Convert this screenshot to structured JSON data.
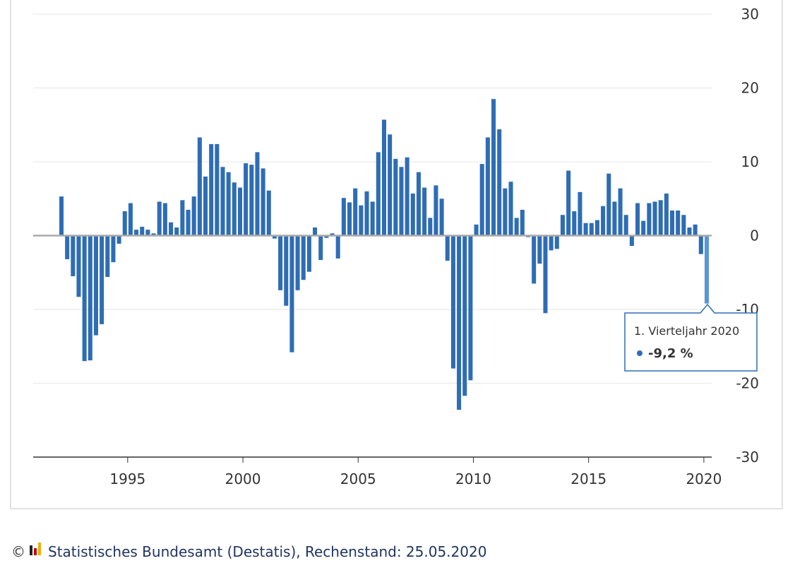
{
  "chart_data": {
    "type": "bar",
    "color": "#2e6db4",
    "highlight_color": "#5a95d4",
    "x": [
      1992,
      1992.25,
      1992.5,
      1992.75,
      1993,
      1993.25,
      1993.5,
      1993.75,
      1994,
      1994.25,
      1994.5,
      1994.75,
      1995,
      1995.25,
      1995.5,
      1995.75,
      1996,
      1996.25,
      1996.5,
      1996.75,
      1997,
      1997.25,
      1997.5,
      1997.75,
      1998,
      1998.25,
      1998.5,
      1998.75,
      1999,
      1999.25,
      1999.5,
      1999.75,
      2000,
      2000.25,
      2000.5,
      2000.75,
      2001,
      2001.25,
      2001.5,
      2001.75,
      2002,
      2002.25,
      2002.5,
      2002.75,
      2003,
      2003.25,
      2003.5,
      2003.75,
      2004,
      2004.25,
      2004.5,
      2004.75,
      2005,
      2005.25,
      2005.5,
      2005.75,
      2006,
      2006.25,
      2006.5,
      2006.75,
      2007,
      2007.25,
      2007.5,
      2007.75,
      2008,
      2008.25,
      2008.5,
      2008.75,
      2009,
      2009.25,
      2009.5,
      2009.75,
      2010,
      2010.25,
      2010.5,
      2010.75,
      2011,
      2011.25,
      2011.5,
      2011.75,
      2012,
      2012.25,
      2012.5,
      2012.75,
      2013,
      2013.25,
      2013.5,
      2013.75,
      2014,
      2014.25,
      2014.5,
      2014.75,
      2015,
      2015.25,
      2015.5,
      2015.75,
      2016,
      2016.25,
      2016.5,
      2016.75,
      2017,
      2017.25,
      2017.5,
      2017.75,
      2018,
      2018.25,
      2018.5,
      2018.75,
      2019,
      2019.25,
      2019.5,
      2019.75,
      2020
    ],
    "values": [
      5.3,
      -3.2,
      -5.5,
      -8.3,
      -17.0,
      -16.9,
      -13.5,
      -12.0,
      -5.6,
      -3.6,
      -1.1,
      3.3,
      4.4,
      0.8,
      1.2,
      0.8,
      0.3,
      4.6,
      4.4,
      1.8,
      1.1,
      4.8,
      3.5,
      5.3,
      13.3,
      8.0,
      12.4,
      12.4,
      9.3,
      8.6,
      7.2,
      6.5,
      9.8,
      9.6,
      11.3,
      9.1,
      6.1,
      -0.4,
      -7.4,
      -9.5,
      -15.8,
      -7.4,
      -6.0,
      -4.9,
      1.1,
      -3.3,
      -0.3,
      0.3,
      -3.1,
      5.1,
      4.5,
      6.4,
      4.1,
      6.0,
      4.6,
      11.3,
      15.7,
      13.7,
      10.4,
      9.3,
      10.6,
      5.7,
      8.6,
      6.5,
      2.4,
      6.8,
      5.0,
      -3.4,
      -18.0,
      -23.6,
      -21.7,
      -19.6,
      1.5,
      9.7,
      13.3,
      18.5,
      14.4,
      6.4,
      7.3,
      2.4,
      3.5,
      -0.2,
      -6.5,
      -3.8,
      -10.5,
      -2.0,
      -1.8,
      2.8,
      8.8,
      3.3,
      5.9,
      1.7,
      1.7,
      2.1,
      4.0,
      8.4,
      4.6,
      6.4,
      2.8,
      -1.4,
      4.4,
      2.0,
      4.4,
      4.6,
      4.8,
      5.7,
      3.4,
      3.4,
      2.8,
      1.1,
      1.5,
      -2.5,
      -9.2
    ],
    "xlim": [
      1990.9,
      2020.34
    ],
    "xticks": [
      1995,
      2000,
      2005,
      2010,
      2015,
      2020
    ],
    "ylim": [
      -30,
      30
    ],
    "yticks": [
      30,
      20,
      10,
      0,
      -10,
      -20,
      -30
    ],
    "grid": true,
    "tooltip": {
      "title": "1. Vierteljahr 2020",
      "text": "-9,2 %"
    }
  },
  "footer": {
    "copyright": "©",
    "source": "Statistisches Bundesamt (Destatis), Rechenstand: 25.05.2020"
  }
}
